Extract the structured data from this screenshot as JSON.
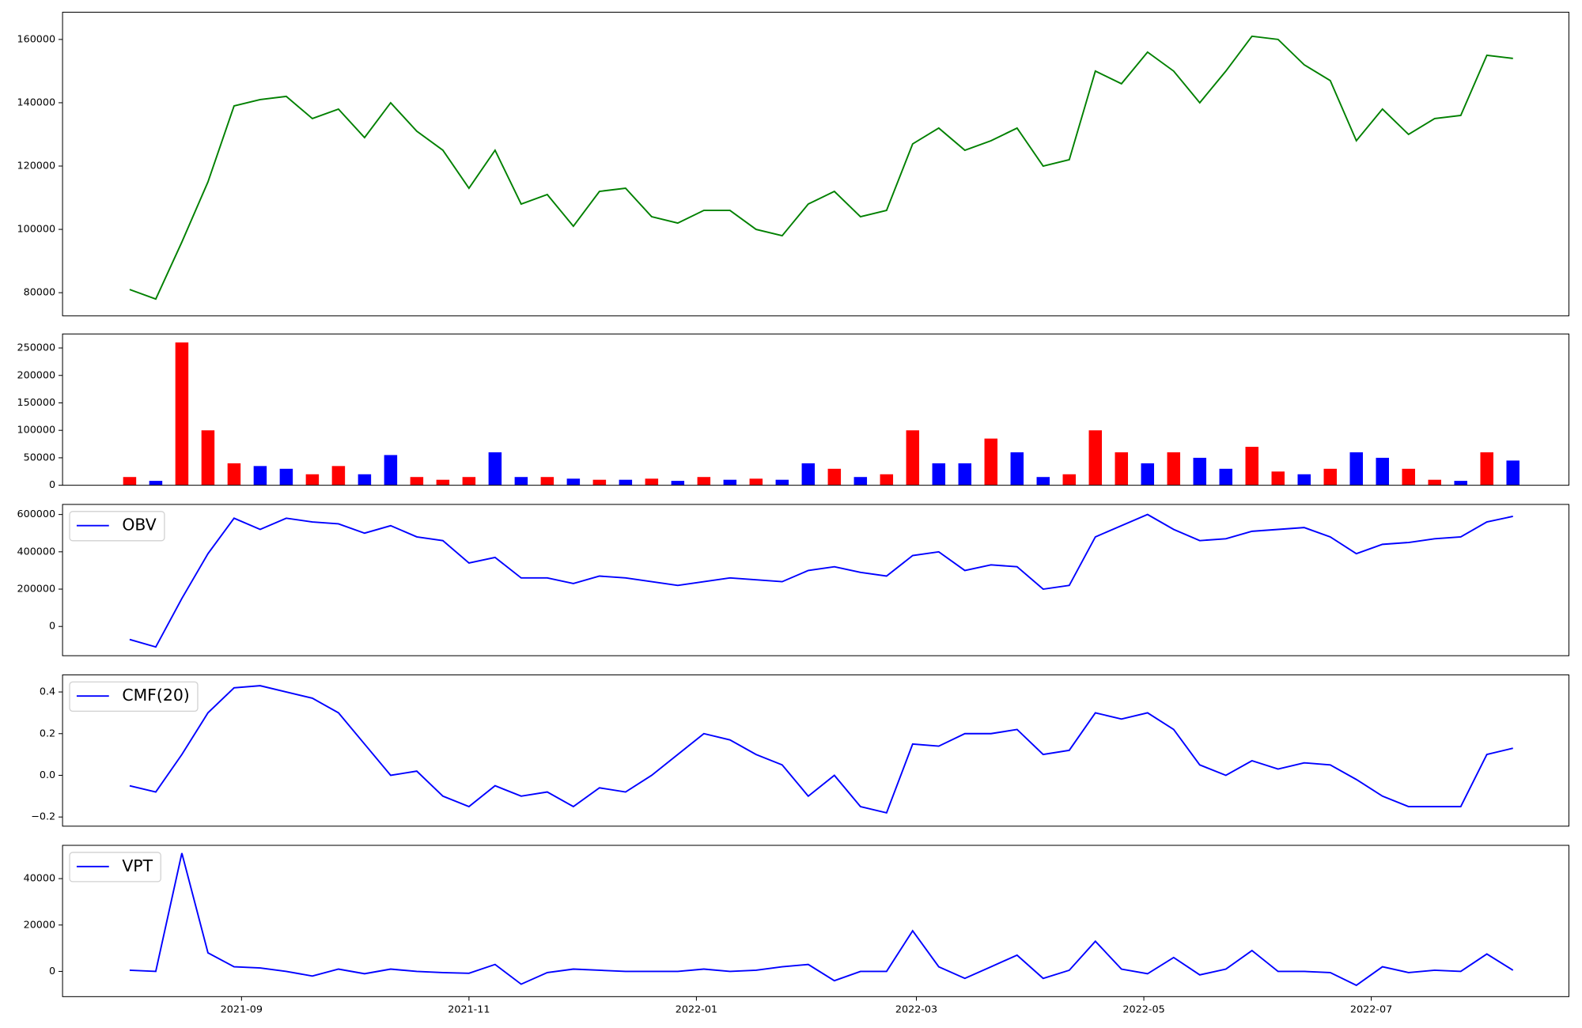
{
  "chart_data": [
    {
      "type": "line",
      "x": [
        "2021-08-02",
        "2021-08-09",
        "2021-08-16",
        "2021-08-23",
        "2021-08-30",
        "2021-09-06",
        "2021-09-13",
        "2021-09-20",
        "2021-09-27",
        "2021-10-04",
        "2021-10-11",
        "2021-10-18",
        "2021-10-25",
        "2021-11-01",
        "2021-11-08",
        "2021-11-15",
        "2021-11-22",
        "2021-11-29",
        "2021-12-06",
        "2021-12-13",
        "2021-12-20",
        "2021-12-27",
        "2022-01-03",
        "2022-01-10",
        "2022-01-17",
        "2022-01-24",
        "2022-01-31",
        "2022-02-07",
        "2022-02-14",
        "2022-02-21",
        "2022-02-28",
        "2022-03-07",
        "2022-03-14",
        "2022-03-21",
        "2022-03-28",
        "2022-04-04",
        "2022-04-11",
        "2022-04-18",
        "2022-04-25",
        "2022-05-02",
        "2022-05-09",
        "2022-05-16",
        "2022-05-23",
        "2022-05-30",
        "2022-06-06",
        "2022-06-13",
        "2022-06-20",
        "2022-06-27",
        "2022-07-04",
        "2022-07-11",
        "2022-07-18",
        "2022-07-25",
        "2022-08-01",
        "2022-08-08"
      ],
      "series": [
        {
          "color": "#008000",
          "values": [
            81000,
            78000,
            96000,
            115000,
            139000,
            141000,
            142000,
            135000,
            138000,
            129000,
            140000,
            131000,
            125000,
            113000,
            125000,
            108000,
            111000,
            101000,
            112000,
            113000,
            104000,
            102000,
            106000,
            106000,
            100000,
            98000,
            108000,
            112000,
            104000,
            106000,
            127000,
            132000,
            125000,
            128000,
            132000,
            120000,
            122000,
            150000,
            146000,
            156000,
            150000,
            140000,
            150000,
            161000,
            160000,
            152000,
            147000,
            128000,
            138000,
            130000,
            135000,
            136000,
            155000,
            154000
          ]
        }
      ],
      "xlim": [
        "2021-07-15",
        "2022-08-23"
      ],
      "ylim": [
        72700,
        168600
      ],
      "yticks": [
        80000,
        100000,
        120000,
        140000,
        160000
      ]
    },
    {
      "type": "bar",
      "x": [
        "2021-08-02",
        "2021-08-09",
        "2021-08-16",
        "2021-08-23",
        "2021-08-30",
        "2021-09-06",
        "2021-09-13",
        "2021-09-20",
        "2021-09-27",
        "2021-10-04",
        "2021-10-11",
        "2021-10-18",
        "2021-10-25",
        "2021-11-01",
        "2021-11-08",
        "2021-11-15",
        "2021-11-22",
        "2021-11-29",
        "2021-12-06",
        "2021-12-13",
        "2021-12-20",
        "2021-12-27",
        "2022-01-03",
        "2022-01-10",
        "2022-01-17",
        "2022-01-24",
        "2022-01-31",
        "2022-02-07",
        "2022-02-14",
        "2022-02-21",
        "2022-02-28",
        "2022-03-07",
        "2022-03-14",
        "2022-03-21",
        "2022-03-28",
        "2022-04-04",
        "2022-04-11",
        "2022-04-18",
        "2022-04-25",
        "2022-05-02",
        "2022-05-09",
        "2022-05-16",
        "2022-05-23",
        "2022-05-30",
        "2022-06-06",
        "2022-06-13",
        "2022-06-20",
        "2022-06-27",
        "2022-07-04",
        "2022-07-11",
        "2022-07-18",
        "2022-07-25",
        "2022-08-01",
        "2022-08-08"
      ],
      "values": [
        15000,
        8000,
        260000,
        100000,
        40000,
        35000,
        30000,
        20000,
        35000,
        20000,
        55000,
        15000,
        10000,
        15000,
        60000,
        15000,
        15000,
        12000,
        10000,
        10000,
        12000,
        8000,
        15000,
        10000,
        12000,
        10000,
        40000,
        30000,
        15000,
        20000,
        100000,
        40000,
        40000,
        85000,
        60000,
        15000,
        20000,
        100000,
        60000,
        40000,
        60000,
        50000,
        30000,
        70000,
        25000,
        20000,
        30000,
        60000,
        50000,
        30000,
        10000,
        8000,
        60000,
        45000
      ],
      "colors": [
        "#ff0000",
        "#0000ff",
        "#ff0000",
        "#ff0000",
        "#ff0000",
        "#0000ff",
        "#0000ff",
        "#ff0000",
        "#ff0000",
        "#0000ff",
        "#0000ff",
        "#ff0000",
        "#ff0000",
        "#ff0000",
        "#0000ff",
        "#0000ff",
        "#ff0000",
        "#0000ff",
        "#ff0000",
        "#0000ff",
        "#ff0000",
        "#0000ff",
        "#ff0000",
        "#0000ff",
        "#ff0000",
        "#0000ff",
        "#0000ff",
        "#ff0000",
        "#0000ff",
        "#ff0000",
        "#ff0000",
        "#0000ff",
        "#0000ff",
        "#ff0000",
        "#0000ff",
        "#0000ff",
        "#ff0000",
        "#ff0000",
        "#ff0000",
        "#0000ff",
        "#ff0000",
        "#0000ff",
        "#0000ff",
        "#ff0000",
        "#ff0000",
        "#0000ff",
        "#ff0000",
        "#0000ff",
        "#0000ff",
        "#ff0000",
        "#ff0000",
        "#0000ff",
        "#ff0000",
        "#0000ff"
      ],
      "xlim": [
        "2021-07-15",
        "2022-08-23"
      ],
      "ylim": [
        0,
        275500
      ],
      "yticks": [
        0,
        50000,
        100000,
        150000,
        200000,
        250000
      ]
    },
    {
      "type": "line",
      "x": [
        "2021-08-02",
        "2021-08-09",
        "2021-08-16",
        "2021-08-23",
        "2021-08-30",
        "2021-09-06",
        "2021-09-13",
        "2021-09-20",
        "2021-09-27",
        "2021-10-04",
        "2021-10-11",
        "2021-10-18",
        "2021-10-25",
        "2021-11-01",
        "2021-11-08",
        "2021-11-15",
        "2021-11-22",
        "2021-11-29",
        "2021-12-06",
        "2021-12-13",
        "2021-12-20",
        "2021-12-27",
        "2022-01-03",
        "2022-01-10",
        "2022-01-17",
        "2022-01-24",
        "2022-01-31",
        "2022-02-07",
        "2022-02-14",
        "2022-02-21",
        "2022-02-28",
        "2022-03-07",
        "2022-03-14",
        "2022-03-21",
        "2022-03-28",
        "2022-04-04",
        "2022-04-11",
        "2022-04-18",
        "2022-04-25",
        "2022-05-02",
        "2022-05-09",
        "2022-05-16",
        "2022-05-23",
        "2022-05-30",
        "2022-06-06",
        "2022-06-13",
        "2022-06-20",
        "2022-06-27",
        "2022-07-04",
        "2022-07-11",
        "2022-07-18",
        "2022-07-25",
        "2022-08-01",
        "2022-08-08"
      ],
      "series": [
        {
          "name": "OBV",
          "color": "#0000ff",
          "values": [
            -70000,
            -110000,
            150000,
            390000,
            580000,
            520000,
            580000,
            560000,
            550000,
            500000,
            540000,
            480000,
            460000,
            340000,
            370000,
            260000,
            260000,
            230000,
            270000,
            260000,
            240000,
            220000,
            240000,
            260000,
            250000,
            240000,
            300000,
            320000,
            290000,
            270000,
            380000,
            400000,
            300000,
            330000,
            320000,
            200000,
            220000,
            480000,
            540000,
            600000,
            520000,
            460000,
            470000,
            510000,
            520000,
            530000,
            480000,
            390000,
            440000,
            450000,
            470000,
            480000,
            560000,
            590000
          ]
        }
      ],
      "legend": "upper left",
      "xlim": [
        "2021-07-15",
        "2022-08-23"
      ],
      "ylim": [
        -156800,
        654000
      ],
      "yticks": [
        0,
        200000,
        400000,
        600000
      ]
    },
    {
      "type": "line",
      "x": [
        "2021-08-02",
        "2021-08-09",
        "2021-08-16",
        "2021-08-23",
        "2021-08-30",
        "2021-09-06",
        "2021-09-13",
        "2021-09-20",
        "2021-09-27",
        "2021-10-04",
        "2021-10-11",
        "2021-10-18",
        "2021-10-25",
        "2021-11-01",
        "2021-11-08",
        "2021-11-15",
        "2021-11-22",
        "2021-11-29",
        "2021-12-06",
        "2021-12-13",
        "2021-12-20",
        "2021-12-27",
        "2022-01-03",
        "2022-01-10",
        "2022-01-17",
        "2022-01-24",
        "2022-01-31",
        "2022-02-07",
        "2022-02-14",
        "2022-02-21",
        "2022-02-28",
        "2022-03-07",
        "2022-03-14",
        "2022-03-21",
        "2022-03-28",
        "2022-04-04",
        "2022-04-11",
        "2022-04-18",
        "2022-04-25",
        "2022-05-02",
        "2022-05-09",
        "2022-05-16",
        "2022-05-23",
        "2022-05-30",
        "2022-06-06",
        "2022-06-13",
        "2022-06-20",
        "2022-06-27",
        "2022-07-04",
        "2022-07-11",
        "2022-07-18",
        "2022-07-25",
        "2022-08-01",
        "2022-08-08"
      ],
      "series": [
        {
          "name": "CMF(20)",
          "color": "#0000ff",
          "values": [
            -0.05,
            -0.08,
            0.1,
            0.3,
            0.42,
            0.43,
            0.4,
            0.37,
            0.3,
            0.15,
            0.0,
            0.02,
            -0.1,
            -0.15,
            -0.05,
            -0.1,
            -0.08,
            -0.15,
            -0.06,
            -0.08,
            0.0,
            0.1,
            0.2,
            0.17,
            0.1,
            0.05,
            -0.1,
            0.0,
            -0.15,
            -0.18,
            0.15,
            0.14,
            0.2,
            0.2,
            0.22,
            0.1,
            0.12,
            0.3,
            0.27,
            0.3,
            0.22,
            0.05,
            0.0,
            0.07,
            0.03,
            0.06,
            0.05,
            -0.02,
            -0.1,
            -0.15,
            -0.15,
            -0.15,
            0.1,
            0.13
          ]
        }
      ],
      "legend": "upper left",
      "xlim": [
        "2021-07-15",
        "2022-08-23"
      ],
      "ylim": [
        -0.244,
        0.482
      ],
      "yticks": [
        {
          "value": -0.2,
          "label": "−0.2"
        },
        {
          "value": 0,
          "label": "0.0"
        },
        0.2,
        0.4
      ]
    },
    {
      "type": "line",
      "x": [
        "2021-08-02",
        "2021-08-09",
        "2021-08-16",
        "2021-08-23",
        "2021-08-30",
        "2021-09-06",
        "2021-09-13",
        "2021-09-20",
        "2021-09-27",
        "2021-10-04",
        "2021-10-11",
        "2021-10-18",
        "2021-10-25",
        "2021-11-01",
        "2021-11-08",
        "2021-11-15",
        "2021-11-22",
        "2021-11-29",
        "2021-12-06",
        "2021-12-13",
        "2021-12-20",
        "2021-12-27",
        "2022-01-03",
        "2022-01-10",
        "2022-01-17",
        "2022-01-24",
        "2022-01-31",
        "2022-02-07",
        "2022-02-14",
        "2022-02-21",
        "2022-02-28",
        "2022-03-07",
        "2022-03-14",
        "2022-03-21",
        "2022-03-28",
        "2022-04-04",
        "2022-04-11",
        "2022-04-18",
        "2022-04-25",
        "2022-05-02",
        "2022-05-09",
        "2022-05-16",
        "2022-05-23",
        "2022-05-30",
        "2022-06-06",
        "2022-06-13",
        "2022-06-20",
        "2022-06-27",
        "2022-07-04",
        "2022-07-11",
        "2022-07-18",
        "2022-07-25",
        "2022-08-01",
        "2022-08-08"
      ],
      "series": [
        {
          "name": "VPT",
          "color": "#0000ff",
          "values": [
            500,
            0,
            51000,
            8000,
            2000,
            1500,
            0,
            -2000,
            1000,
            -1000,
            1000,
            0,
            -500,
            -800,
            3000,
            -5500,
            -500,
            1000,
            500,
            0,
            0,
            0,
            1000,
            0,
            500,
            2000,
            3000,
            -4000,
            0,
            0,
            17500,
            2000,
            -3000,
            2000,
            7000,
            -3000,
            500,
            13000,
            1000,
            -1000,
            6000,
            -1500,
            1000,
            9000,
            0,
            0,
            -500,
            -6000,
            2000,
            -500,
            500,
            0,
            7500,
            500
          ]
        }
      ],
      "legend": "upper left",
      "xlim": [
        "2021-07-15",
        "2022-08-23"
      ],
      "ylim": [
        -10870,
        54350
      ],
      "yticks": [
        0,
        20000,
        40000
      ],
      "xticks": [
        "2021-09",
        "2021-11",
        "2022-01",
        "2022-03",
        "2022-05",
        "2022-07"
      ]
    }
  ]
}
